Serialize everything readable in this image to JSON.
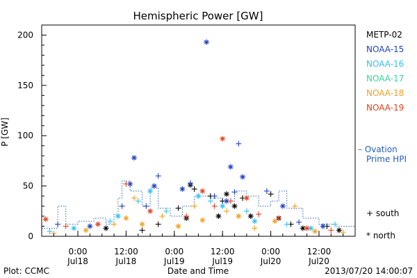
{
  "chart_data": {
    "type": "scatter",
    "title": "Hemispheric Power [GW]",
    "xlabel": "Date and Time",
    "ylabel": "P [GW]",
    "xlim": [
      "2013-07-17T15:00",
      "2013-07-20T21:00"
    ],
    "ylim": [
      0,
      210
    ],
    "y_ticks": [
      0,
      50,
      100,
      150,
      200
    ],
    "x_ticks": [
      {
        "x": "2013-07-18T00:00",
        "time": "0:00",
        "date": "Jul18"
      },
      {
        "x": "2013-07-18T12:00",
        "time": "12:00",
        "date": "Jul18"
      },
      {
        "x": "2013-07-19T00:00",
        "time": "0:00",
        "date": "Jul19"
      },
      {
        "x": "2013-07-19T12:00",
        "time": "12:00",
        "date": "Jul19"
      },
      {
        "x": "2013-07-20T00:00",
        "time": "0:00",
        "date": "Jul20"
      },
      {
        "x": "2013-07-20T12:00",
        "time": "12:00",
        "date": "Jul20"
      }
    ],
    "legend_position": "right",
    "ovation_label": "– Ovation Prime HPI",
    "marker_legend": {
      "south": "+ south",
      "north": "* north"
    },
    "series": [
      {
        "name": "METP-02",
        "color": "#000000",
        "points": [
          [
            "2013-07-18T07:00",
            8,
            "n"
          ],
          [
            "2013-07-18T16:00",
            6,
            "s"
          ],
          [
            "2013-07-18T20:00",
            12,
            "s"
          ],
          [
            "2013-07-19T01:00",
            28,
            "s"
          ],
          [
            "2013-07-19T03:00",
            18,
            "n"
          ],
          [
            "2013-07-19T04:00",
            51,
            "n"
          ],
          [
            "2013-07-19T05:00",
            47,
            "s"
          ],
          [
            "2013-07-19T09:00",
            40,
            "s"
          ],
          [
            "2013-07-19T11:00",
            20,
            "n"
          ],
          [
            "2013-07-19T12:00",
            35,
            "s"
          ],
          [
            "2013-07-19T13:00",
            42,
            "n"
          ],
          [
            "2013-07-19T15:00",
            30,
            "n"
          ],
          [
            "2013-07-19T17:00",
            38,
            "s"
          ],
          [
            "2013-07-19T19:00",
            20,
            "n"
          ],
          [
            "2013-07-20T00:00",
            42,
            "s"
          ],
          [
            "2013-07-20T02:00",
            18,
            "n"
          ],
          [
            "2013-07-20T05:00",
            12,
            "s"
          ],
          [
            "2013-07-20T08:00",
            8,
            "n"
          ],
          [
            "2013-07-20T14:00",
            10,
            "s"
          ],
          [
            "2013-07-20T17:00",
            6,
            "n"
          ]
        ]
      },
      {
        "name": "NOAA-15",
        "color": "#1f3fbf",
        "points": [
          [
            "2013-07-17T19:00",
            12,
            "s"
          ],
          [
            "2013-07-18T03:00",
            10,
            "n"
          ],
          [
            "2013-07-18T11:00",
            30,
            "s"
          ],
          [
            "2013-07-18T13:00",
            52,
            "n"
          ],
          [
            "2013-07-18T14:00",
            78,
            "n"
          ],
          [
            "2013-07-18T17:00",
            30,
            "s"
          ],
          [
            "2013-07-18T19:00",
            50,
            "n"
          ],
          [
            "2013-07-18T20:00",
            60,
            "s"
          ],
          [
            "2013-07-19T02:00",
            47,
            "n"
          ],
          [
            "2013-07-19T04:00",
            53,
            "s"
          ],
          [
            "2013-07-19T08:00",
            193,
            "n"
          ],
          [
            "2013-07-19T10:00",
            40,
            "s"
          ],
          [
            "2013-07-19T13:00",
            35,
            "n"
          ],
          [
            "2013-07-19T14:00",
            69,
            "n"
          ],
          [
            "2013-07-19T15:00",
            44,
            "s"
          ],
          [
            "2013-07-19T16:00",
            92,
            "s"
          ],
          [
            "2013-07-19T17:00",
            59,
            "n"
          ],
          [
            "2013-07-19T23:00",
            45,
            "s"
          ],
          [
            "2013-07-20T03:00",
            30,
            "n"
          ],
          [
            "2013-07-20T07:00",
            14,
            "s"
          ],
          [
            "2013-07-20T13:00",
            10,
            "n"
          ]
        ]
      },
      {
        "name": "NOAA-16",
        "color": "#33c0f0",
        "points": [
          [
            "2013-07-17T17:00",
            5,
            "s"
          ],
          [
            "2013-07-17T23:00",
            8,
            "n"
          ],
          [
            "2013-07-18T08:00",
            15,
            "s"
          ],
          [
            "2013-07-18T10:00",
            20,
            "n"
          ],
          [
            "2013-07-18T15:00",
            35,
            "s"
          ],
          [
            "2013-07-18T18:00",
            45,
            "n"
          ],
          [
            "2013-07-18T22:00",
            25,
            "s"
          ],
          [
            "2013-07-19T06:00",
            40,
            "n"
          ],
          [
            "2013-07-19T09:00",
            35,
            "s"
          ],
          [
            "2013-07-19T12:00",
            30,
            "n"
          ],
          [
            "2013-07-19T18:00",
            25,
            "s"
          ],
          [
            "2013-07-19T20:00",
            15,
            "n"
          ],
          [
            "2013-07-20T04:00",
            12,
            "s"
          ],
          [
            "2013-07-20T10:00",
            8,
            "n"
          ],
          [
            "2013-07-20T16:00",
            12,
            "s"
          ]
        ]
      },
      {
        "name": "NOAA-17",
        "color": "#33d49a",
        "points": []
      },
      {
        "name": "NOAA-18",
        "color": "#f0a020",
        "points": [
          [
            "2013-07-17T18:00",
            3,
            "s"
          ],
          [
            "2013-07-18T02:00",
            6,
            "n"
          ],
          [
            "2013-07-18T09:00",
            12,
            "s"
          ],
          [
            "2013-07-18T12:00",
            18,
            "n"
          ],
          [
            "2013-07-18T14:00",
            38,
            "s"
          ],
          [
            "2013-07-18T16:00",
            12,
            "n"
          ],
          [
            "2013-07-18T21:00",
            20,
            "s"
          ],
          [
            "2013-07-19T01:00",
            10,
            "n"
          ],
          [
            "2013-07-19T05:00",
            30,
            "s"
          ],
          [
            "2013-07-19T07:00",
            16,
            "n"
          ],
          [
            "2013-07-19T13:00",
            25,
            "s"
          ],
          [
            "2013-07-19T16:00",
            20,
            "n"
          ],
          [
            "2013-07-19T20:00",
            8,
            "s"
          ],
          [
            "2013-07-20T01:00",
            15,
            "n"
          ],
          [
            "2013-07-20T06:00",
            30,
            "s"
          ],
          [
            "2013-07-20T11:00",
            5,
            "n"
          ],
          [
            "2013-07-20T18:00",
            4,
            "s"
          ]
        ]
      },
      {
        "name": "NOAA-19",
        "color": "#e0401c",
        "points": [
          [
            "2013-07-17T16:00",
            17,
            "n"
          ],
          [
            "2013-07-17T21:00",
            10,
            "s"
          ],
          [
            "2013-07-18T05:00",
            12,
            "n"
          ],
          [
            "2013-07-18T12:00",
            52,
            "s"
          ],
          [
            "2013-07-18T18:00",
            25,
            "n"
          ],
          [
            "2013-07-19T03:00",
            20,
            "s"
          ],
          [
            "2013-07-19T07:00",
            45,
            "n"
          ],
          [
            "2013-07-19T10:00",
            30,
            "s"
          ],
          [
            "2013-07-19T12:00",
            97,
            "n"
          ],
          [
            "2013-07-19T14:00",
            35,
            "s"
          ],
          [
            "2013-07-19T18:00",
            38,
            "n"
          ],
          [
            "2013-07-19T21:00",
            22,
            "s"
          ],
          [
            "2013-07-20T02:00",
            18,
            "s"
          ],
          [
            "2013-07-20T09:00",
            8,
            "n"
          ],
          [
            "2013-07-20T15:00",
            6,
            "s"
          ]
        ]
      }
    ],
    "ovation_hpi": {
      "color": "#1f5fbf",
      "x": [
        "2013-07-17T15:00",
        "2013-07-17T19:00",
        "2013-07-17T21:00",
        "2013-07-18T00:00",
        "2013-07-18T04:00",
        "2013-07-18T07:00",
        "2013-07-18T09:00",
        "2013-07-18T10:00",
        "2013-07-18T11:00",
        "2013-07-18T13:00",
        "2013-07-18T16:00",
        "2013-07-18T18:00",
        "2013-07-18T20:00",
        "2013-07-18T23:00",
        "2013-07-19T02:00",
        "2013-07-19T05:00",
        "2013-07-19T09:00",
        "2013-07-19T12:00",
        "2013-07-19T15:00",
        "2013-07-19T18:00",
        "2013-07-19T21:00",
        "2013-07-20T00:00",
        "2013-07-20T02:00",
        "2013-07-20T04:00",
        "2013-07-20T08:00",
        "2013-07-20T12:00",
        "2013-07-20T16:00",
        "2013-07-20T21:00"
      ],
      "y": [
        8,
        30,
        12,
        15,
        18,
        12,
        22,
        38,
        55,
        45,
        30,
        48,
        28,
        20,
        30,
        40,
        38,
        35,
        45,
        40,
        30,
        35,
        45,
        28,
        18,
        12,
        10,
        8
      ]
    }
  },
  "footer": {
    "plot_credit": "Plot: CCMC",
    "timestamp": "2013/07/20 14:00:07"
  }
}
